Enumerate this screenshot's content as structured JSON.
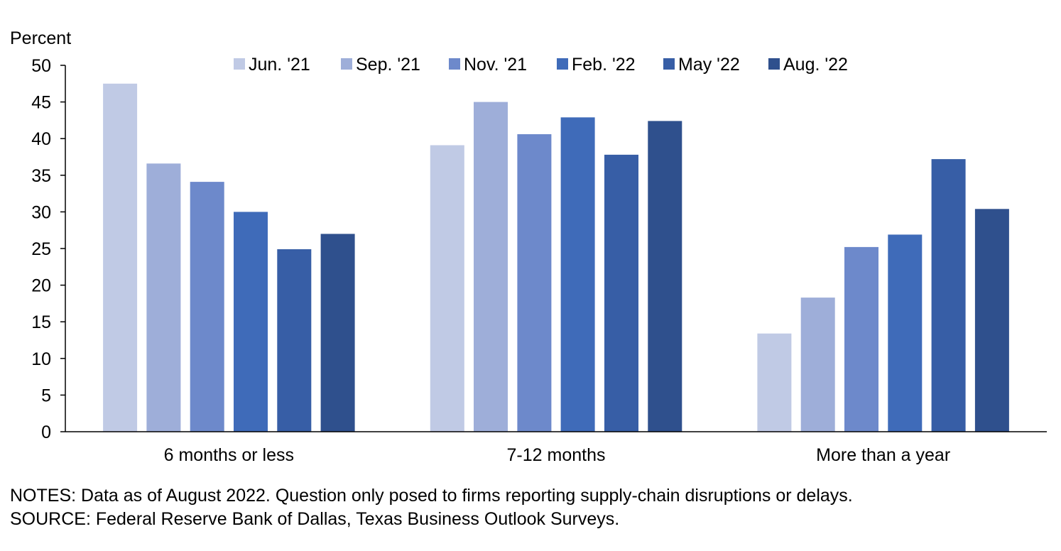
{
  "chart_data": {
    "type": "bar",
    "ylabel": "Percent",
    "ylim": [
      0,
      50
    ],
    "yticks": [
      0,
      5,
      10,
      15,
      20,
      25,
      30,
      35,
      40,
      45,
      50
    ],
    "categories": [
      "6 months or less",
      "7-12 months",
      "More than a year"
    ],
    "series": [
      {
        "name": "Jun. '21",
        "color": "#c0cae5",
        "values": [
          47.5,
          39.1,
          13.4
        ]
      },
      {
        "name": "Sep. '21",
        "color": "#9eaed9",
        "values": [
          36.6,
          45.0,
          18.3
        ]
      },
      {
        "name": "Nov. '21",
        "color": "#6d89cb",
        "values": [
          34.1,
          40.6,
          25.2
        ]
      },
      {
        "name": "Feb. '22",
        "color": "#3f6bb9",
        "values": [
          30.0,
          42.9,
          26.9
        ]
      },
      {
        "name": "May '22",
        "color": "#375ea6",
        "values": [
          24.9,
          37.8,
          37.2
        ]
      },
      {
        "name": "Aug. '22",
        "color": "#2f508d",
        "values": [
          27.0,
          42.4,
          30.4
        ]
      }
    ],
    "legend_position": "top",
    "grid": false
  },
  "notes": "NOTES: Data as of August 2022. Question only posed to firms reporting supply-chain disruptions or delays.",
  "source": "SOURCE: Federal Reserve Bank of Dallas, Texas Business Outlook Surveys."
}
